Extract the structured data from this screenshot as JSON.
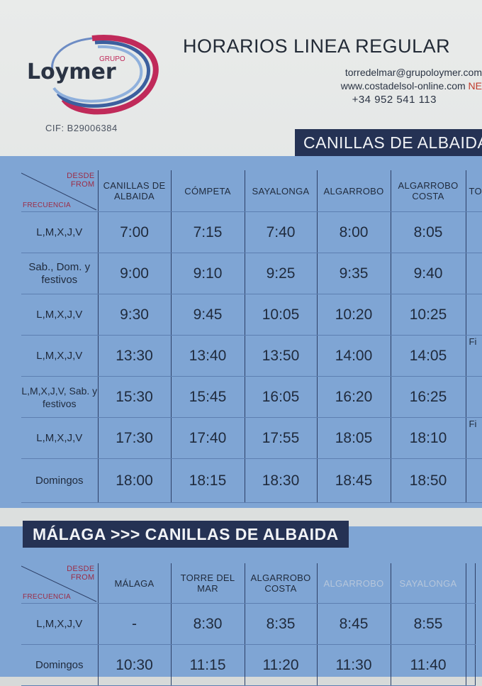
{
  "header": {
    "brand": "Loymer",
    "brand_sub": "GRUPO",
    "cif": "CIF: B29006384",
    "title": "HORARIOS LINEA REGULAR",
    "email": "torredelmar@grupoloymer.com",
    "web": "www.costadelsol-online.com",
    "web_suffix": "NE",
    "phone": "+34 952 541 113"
  },
  "colors": {
    "table_blue": "#7fa5d4",
    "banner_navy": "#253254",
    "logo_red": "#c02a5a"
  },
  "table1": {
    "banner": "CANILLAS DE ALBAIDA",
    "corner_desde": "DESDE",
    "corner_from": "FROM",
    "corner_frecuencia": "FRECUENCIA",
    "columns": [
      "CANILLAS DE ALBAIDA",
      "CÓMPETA",
      "SAYALONGA",
      "ALGARROBO",
      "ALGARROBO COSTA",
      "TO"
    ],
    "rows": [
      {
        "freq": "L,M,X,J,V",
        "times": [
          "7:00",
          "7:15",
          "7:40",
          "8:00",
          "8:05",
          ""
        ]
      },
      {
        "freq": "Sab., Dom. y festivos",
        "times": [
          "9:00",
          "9:10",
          "9:25",
          "9:35",
          "9:40",
          ""
        ]
      },
      {
        "freq": "L,M,X,J,V",
        "times": [
          "9:30",
          "9:45",
          "10:05",
          "10:20",
          "10:25",
          ""
        ]
      },
      {
        "freq": "L,M,X,J,V",
        "times": [
          "13:30",
          "13:40",
          "13:50",
          "14:00",
          "14:05",
          "Fi"
        ]
      },
      {
        "freq": "L,M,X,J,V, Sab. y festivos",
        "times": [
          "15:30",
          "15:45",
          "16:05",
          "16:20",
          "16:25",
          ""
        ]
      },
      {
        "freq": "L,M,X,J,V",
        "times": [
          "17:30",
          "17:40",
          "17:55",
          "18:05",
          "18:10",
          "Fi"
        ]
      },
      {
        "freq": "Domingos",
        "times": [
          "18:00",
          "18:15",
          "18:30",
          "18:45",
          "18:50",
          ""
        ]
      }
    ]
  },
  "table2": {
    "banner": "MÁLAGA >>> CANILLAS DE ALBAIDA",
    "corner_desde": "DESDE",
    "corner_from": "FROM",
    "corner_frecuencia": "FRECUENCIA",
    "columns": [
      "MÁLAGA",
      "TORRE DEL MAR",
      "ALGARROBO COSTA",
      "ALGARROBO",
      "SAYALONGA"
    ],
    "rows": [
      {
        "freq": "L,M,X,J,V",
        "times": [
          "-",
          "8:30",
          "8:35",
          "8:45",
          "8:55"
        ]
      },
      {
        "freq": "Domingos",
        "times": [
          "10:30",
          "11:15",
          "11:20",
          "11:30",
          "11:40"
        ]
      }
    ]
  }
}
